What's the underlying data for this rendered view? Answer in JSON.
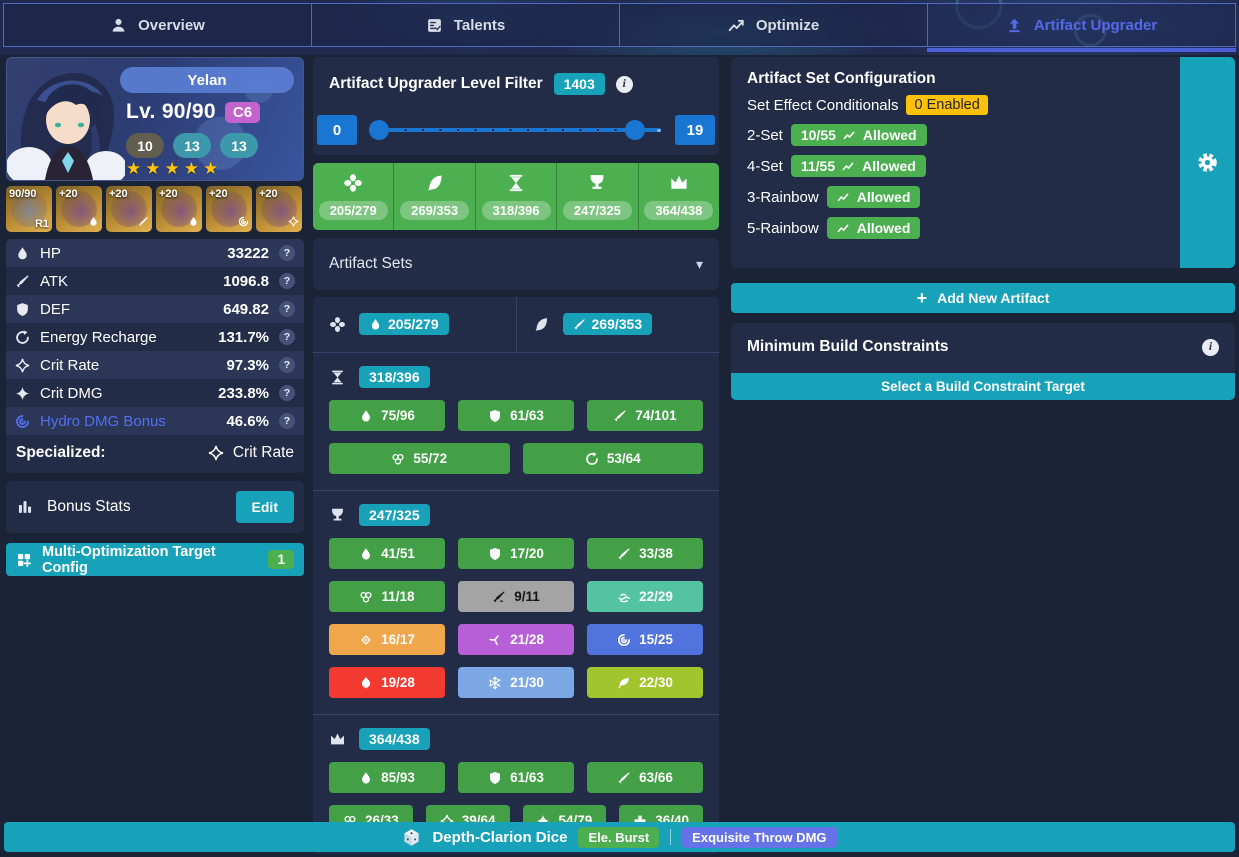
{
  "tabs": [
    {
      "label": "Overview",
      "icon": "person",
      "active": false
    },
    {
      "label": "Talents",
      "icon": "talents",
      "active": false
    },
    {
      "label": "Optimize",
      "icon": "trend",
      "active": false
    },
    {
      "label": "Artifact Upgrader",
      "icon": "upload",
      "active": true
    }
  ],
  "character": {
    "name": "Yelan",
    "level_label": "Lv. 90/90",
    "constellation": "C6",
    "talents": [
      {
        "value": "10",
        "dim": true
      },
      {
        "value": "13",
        "dim": false
      },
      {
        "value": "13",
        "dim": false
      }
    ],
    "stars": 5
  },
  "equipment": [
    {
      "kind": "weapon",
      "top": "90/90",
      "bottom_text": "R1"
    },
    {
      "kind": "artifact",
      "slot": "flower",
      "top": "+20",
      "icon": "drop"
    },
    {
      "kind": "artifact",
      "slot": "plume",
      "top": "+20",
      "icon": "atk"
    },
    {
      "kind": "artifact",
      "slot": "sands",
      "top": "+20",
      "icon": "drop"
    },
    {
      "kind": "artifact",
      "slot": "goblet",
      "top": "+20",
      "icon": "hydro"
    },
    {
      "kind": "artifact",
      "slot": "circlet",
      "top": "+20",
      "icon": "crit"
    }
  ],
  "stats": {
    "rows": [
      {
        "icon": "drop",
        "label": "HP",
        "value": "33222",
        "accent": false
      },
      {
        "icon": "atk",
        "label": "ATK",
        "value": "1096.8",
        "accent": false
      },
      {
        "icon": "shield",
        "label": "DEF",
        "value": "649.82",
        "accent": false
      },
      {
        "icon": "er",
        "label": "Energy Recharge",
        "value": "131.7%",
        "accent": false
      },
      {
        "icon": "crit",
        "label": "Crit Rate",
        "value": "97.3%",
        "accent": false
      },
      {
        "icon": "critdmg",
        "label": "Crit DMG",
        "value": "233.8%",
        "accent": false
      },
      {
        "icon": "hydro",
        "label": "Hydro DMG Bonus",
        "value": "46.6%",
        "accent": true
      }
    ],
    "specialized_label": "Specialized:",
    "specialized_icon": "crit",
    "specialized_value": "Crit Rate"
  },
  "bonus_stats": {
    "title": "Bonus Stats",
    "edit_label": "Edit"
  },
  "multi_opt": {
    "label": "Multi-Optimization Target Config",
    "count": "1"
  },
  "upgrader": {
    "title": "Artifact Upgrader Level Filter",
    "total_badge": "1403",
    "slider_min": "0",
    "slider_max": "19"
  },
  "slot_summary": [
    {
      "slot": "flower",
      "icon": "flower",
      "count": "205/279"
    },
    {
      "slot": "plume",
      "icon": "plume",
      "count": "269/353"
    },
    {
      "slot": "sands",
      "icon": "sands",
      "count": "318/396"
    },
    {
      "slot": "goblet",
      "icon": "goblet",
      "count": "247/325"
    },
    {
      "slot": "circlet",
      "icon": "circlet",
      "count": "364/438"
    }
  ],
  "artifact_sets": {
    "label": "Artifact Sets"
  },
  "substat_panel": {
    "pair": [
      {
        "slot": "flower",
        "slot_icon": "flower",
        "badge_icon": "drop",
        "count": "205/279"
      },
      {
        "slot": "plume",
        "slot_icon": "plume",
        "badge_icon": "atk",
        "count": "269/353"
      }
    ],
    "sections": [
      {
        "slot": "sands",
        "slot_icon": "sands",
        "count": "318/396",
        "rows": [
          [
            {
              "icon": "drop",
              "label": "75/96",
              "color": "green"
            },
            {
              "icon": "shield",
              "label": "61/63",
              "color": "green"
            },
            {
              "icon": "atk",
              "label": "74/101",
              "color": "green"
            }
          ],
          [
            {
              "icon": "em",
              "label": "55/72",
              "color": "green"
            },
            {
              "icon": "er",
              "label": "53/64",
              "color": "green"
            }
          ]
        ]
      },
      {
        "slot": "goblet",
        "slot_icon": "goblet",
        "count": "247/325",
        "rows": [
          [
            {
              "icon": "drop",
              "label": "41/51",
              "color": "green"
            },
            {
              "icon": "shield",
              "label": "17/20",
              "color": "green"
            },
            {
              "icon": "atk",
              "label": "33/38",
              "color": "green"
            }
          ],
          [
            {
              "icon": "em",
              "label": "11/18",
              "color": "green"
            },
            {
              "icon": "physical",
              "label": "9/11",
              "color": "gray"
            },
            {
              "icon": "anemo",
              "label": "22/29",
              "color": "anemo"
            }
          ],
          [
            {
              "icon": "geo",
              "label": "16/17",
              "color": "geo"
            },
            {
              "icon": "electro",
              "label": "21/28",
              "color": "electro"
            },
            {
              "icon": "hydro",
              "label": "15/25",
              "color": "hydro"
            }
          ],
          [
            {
              "icon": "pyro",
              "label": "19/28",
              "color": "pyro"
            },
            {
              "icon": "cryo",
              "label": "21/30",
              "color": "cryo"
            },
            {
              "icon": "dendro",
              "label": "22/30",
              "color": "dendro"
            }
          ]
        ]
      },
      {
        "slot": "circlet",
        "slot_icon": "circlet",
        "count": "364/438",
        "rows": [
          [
            {
              "icon": "drop",
              "label": "85/93",
              "color": "green"
            },
            {
              "icon": "shield",
              "label": "61/63",
              "color": "green"
            },
            {
              "icon": "atk",
              "label": "63/66",
              "color": "green"
            }
          ],
          [
            {
              "icon": "em",
              "label": "26/33",
              "color": "green"
            },
            {
              "icon": "crit",
              "label": "39/64",
              "color": "green"
            },
            {
              "icon": "critdmg",
              "label": "54/79",
              "color": "green"
            },
            {
              "icon": "heal",
              "label": "36/40",
              "color": "green"
            }
          ]
        ]
      }
    ]
  },
  "set_config": {
    "title": "Artifact Set Configuration",
    "conditionals_label": "Set Effect Conditionals",
    "conditionals_badge": "0 Enabled",
    "rows": [
      {
        "label": "2-Set",
        "count": "10/55",
        "status": "Allowed"
      },
      {
        "label": "4-Set",
        "count": "11/55",
        "status": "Allowed"
      },
      {
        "label": "3-Rainbow",
        "count": "",
        "status": "Allowed"
      },
      {
        "label": "5-Rainbow",
        "count": "",
        "status": "Allowed"
      }
    ]
  },
  "add_artifact_label": "Add New Artifact",
  "constraints": {
    "title": "Minimum Build Constraints",
    "button_label": "Select a Build Constraint Target"
  },
  "footer": {
    "weapon": "Depth-Clarion Dice",
    "badges": [
      {
        "label": "Ele. Burst",
        "color": "green"
      },
      {
        "label": "Exquisite Throw DMG",
        "color": "indigo"
      }
    ]
  },
  "colors": {
    "teal": "#18a2ba",
    "green": "#4caf50",
    "button_green": "#43a047",
    "amber": "#ffc107",
    "slider_blue": "#1976d2",
    "active_tab": "#5668ea",
    "indigo_badge": "#6673e8",
    "page_bg": "#1b2337",
    "panel": "#232c47",
    "hydro_accent": "#5271f0",
    "star_gold": "#ffc40a",
    "constellation": "#c263ce"
  }
}
